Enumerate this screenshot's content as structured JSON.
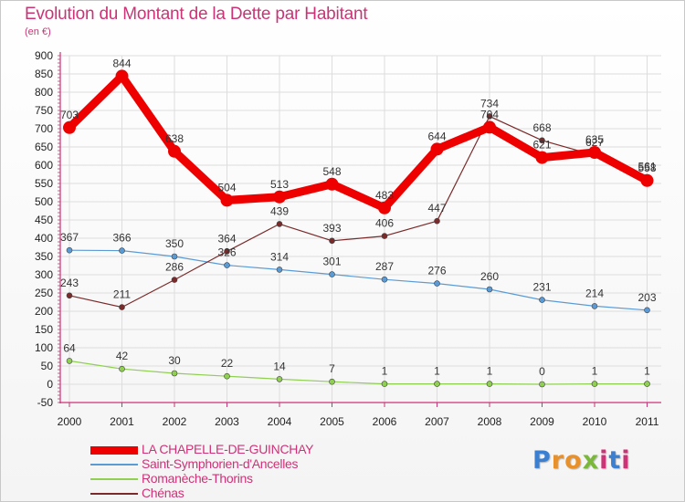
{
  "title": "Evolution du Montant de la Dette par Habitant",
  "subtitle": "(en €)",
  "logo": {
    "letters": [
      "P",
      "r",
      "o",
      "x",
      "i",
      "t",
      "i"
    ],
    "colors": [
      "#3b7fd1",
      "#e8902a",
      "#e8902a",
      "#7ab83a",
      "#cc3377",
      "#3b7fd1",
      "#cc3377"
    ]
  },
  "chart_data": {
    "type": "line",
    "x": [
      "2000",
      "2001",
      "2002",
      "2003",
      "2004",
      "2005",
      "2006",
      "2007",
      "2008",
      "2009",
      "2010",
      "2011"
    ],
    "ylim": [
      -50,
      900
    ],
    "yticks": [
      "-50",
      "0",
      "50",
      "100",
      "150",
      "200",
      "250",
      "300",
      "350",
      "400",
      "450",
      "500",
      "550",
      "600",
      "650",
      "700",
      "750",
      "800",
      "850",
      "900"
    ],
    "ytick_values": [
      -50,
      0,
      50,
      100,
      150,
      200,
      250,
      300,
      350,
      400,
      450,
      500,
      550,
      600,
      650,
      700,
      750,
      800,
      850,
      900
    ],
    "grid": true,
    "legend_position": "bottom-left",
    "series": [
      {
        "name": "LA CHAPELLE-DE-GUINCHAY",
        "color": "#ee0000",
        "width": 9,
        "marker": 7,
        "values": [
          703,
          844,
          638,
          504,
          513,
          548,
          483,
          644,
          704,
          621,
          635,
          558
        ],
        "labels": [
          "703",
          "844",
          "638",
          "504",
          "513",
          "548",
          "483",
          "644",
          "704",
          "621",
          "635",
          "558"
        ]
      },
      {
        "name": "Saint-Symphorien-d'Ancelles",
        "color": "#5b9bd5",
        "width": 1.2,
        "marker": 3,
        "values": [
          367,
          366,
          350,
          326,
          314,
          301,
          287,
          276,
          260,
          231,
          214,
          203
        ],
        "labels": [
          "367",
          "366",
          "350",
          "326",
          "314",
          "301",
          "287",
          "276",
          "260",
          "231",
          "214",
          "203"
        ]
      },
      {
        "name": "Romanèche-Thorins",
        "color": "#8fd050",
        "width": 1.2,
        "marker": 3,
        "values": [
          64,
          42,
          30,
          22,
          14,
          7,
          1,
          1,
          1,
          0,
          1,
          1
        ],
        "labels": [
          "64",
          "42",
          "30",
          "22",
          "14",
          "7",
          "1",
          "1",
          "1",
          "0",
          "1",
          "1"
        ]
      },
      {
        "name": "Chénas",
        "color": "#7a2a2a",
        "width": 1.2,
        "marker": 3,
        "values": [
          243,
          211,
          286,
          364,
          439,
          393,
          406,
          447,
          734,
          668,
          627,
          561
        ],
        "labels": [
          "243",
          "211",
          "286",
          "364",
          "439",
          "393",
          "406",
          "447",
          "734",
          "668",
          "627",
          "561"
        ]
      }
    ]
  }
}
